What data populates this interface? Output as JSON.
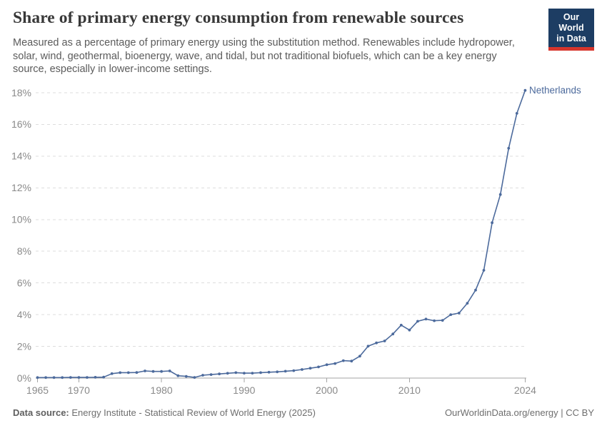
{
  "header": {
    "title": "Share of primary energy consumption from renewable sources",
    "subtitle_lines": [
      "Measured as a percentage of primary energy using the substitution method. Renewables include hydropower,",
      "solar, wind, geothermal, bioenergy, wave, and tidal, but not traditional biofuels, which can be a key energy",
      "source, especially in lower-income settings."
    ],
    "logo": {
      "line1": "Our World",
      "line2": "in Data"
    }
  },
  "chart_data": {
    "type": "line",
    "title": "Share of primary energy consumption from renewable sources",
    "unit": "%",
    "xlim": [
      1965,
      2024
    ],
    "ylim": [
      0,
      18
    ],
    "grid": "horizontal-dashed",
    "legend": "end-of-line-label",
    "x_ticks": [
      1965,
      1970,
      1980,
      1990,
      2000,
      2010,
      2024
    ],
    "y_ticks": [
      0,
      2,
      4,
      6,
      8,
      10,
      12,
      14,
      16,
      18
    ],
    "x": [
      1965,
      1966,
      1967,
      1968,
      1969,
      1970,
      1971,
      1972,
      1973,
      1974,
      1975,
      1976,
      1977,
      1978,
      1979,
      1980,
      1981,
      1982,
      1983,
      1984,
      1985,
      1986,
      1987,
      1988,
      1989,
      1990,
      1991,
      1992,
      1993,
      1994,
      1995,
      1996,
      1997,
      1998,
      1999,
      2000,
      2001,
      2002,
      2003,
      2004,
      2005,
      2006,
      2007,
      2008,
      2009,
      2010,
      2011,
      2012,
      2013,
      2014,
      2015,
      2016,
      2017,
      2018,
      2019,
      2020,
      2021,
      2022,
      2023,
      2024
    ],
    "series": [
      {
        "name": "Netherlands",
        "color": "#4c6a9c",
        "values": [
          0.03,
          0.03,
          0.03,
          0.03,
          0.04,
          0.04,
          0.04,
          0.05,
          0.06,
          0.28,
          0.34,
          0.34,
          0.35,
          0.45,
          0.42,
          0.42,
          0.45,
          0.15,
          0.11,
          0.04,
          0.18,
          0.22,
          0.26,
          0.3,
          0.34,
          0.31,
          0.31,
          0.34,
          0.37,
          0.39,
          0.43,
          0.47,
          0.54,
          0.62,
          0.7,
          0.84,
          0.92,
          1.1,
          1.07,
          1.38,
          2.01,
          2.22,
          2.34,
          2.78,
          3.34,
          3.03,
          3.58,
          3.72,
          3.62,
          3.64,
          4.0,
          4.1,
          4.72,
          5.55,
          6.8,
          9.8,
          11.58,
          14.5,
          16.7,
          18.15
        ]
      }
    ]
  },
  "footer": {
    "datasource_label": "Data source:",
    "datasource_value": "Energy Institute - Statistical Review of World Energy (2025)",
    "credit": "OurWorldinData.org/energy | CC BY"
  },
  "colors": {
    "line": "#4c6a9c",
    "grid": "#dddddd",
    "axis": "#a3a3a3",
    "tick_text": "#8a8a8a",
    "entity_label": "#4c6a9c"
  }
}
